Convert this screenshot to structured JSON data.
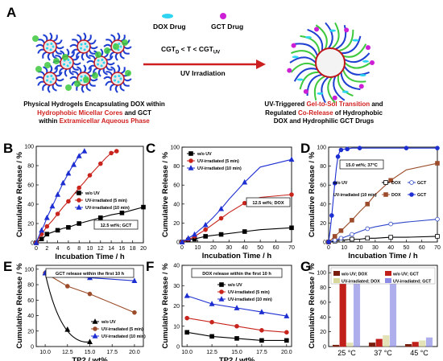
{
  "panel_a": {
    "letter": "A",
    "legend": {
      "dox": "DOX Drug",
      "gct": "GCT Drug"
    },
    "arrow_top": "CGT",
    "arrow_top_sub1": "D",
    "arrow_top_mid": " < T < CGT",
    "arrow_top_sub2": "UV",
    "arrow_bottom": "UV Irradiation",
    "left_caption": [
      [
        {
          "t": "Physical Hydrogels Encapsulating DOX within",
          "red": false
        }
      ],
      [
        {
          "t": "Hydrophobic Micellar Cores",
          "red": true
        },
        {
          "t": " and GCT",
          "red": false
        }
      ],
      [
        {
          "t": "within ",
          "red": false
        },
        {
          "t": "Extramicellar Aqueous Phase",
          "red": true
        }
      ]
    ],
    "right_caption": [
      [
        {
          "t": "UV-Triggered ",
          "red": false
        },
        {
          "t": "Gel-to-Sol Transition",
          "red": true
        },
        {
          "t": " and",
          "red": false
        }
      ],
      [
        {
          "t": "Regulated ",
          "red": false
        },
        {
          "t": "Co-Release",
          "red": true
        },
        {
          "t": " of Hydrophobic",
          "red": false
        }
      ],
      [
        {
          "t": "DOX and Hydrophilic GCT Drugs",
          "red": false
        }
      ]
    ],
    "colors": {
      "core": "#e8e8e8",
      "chain_blue": "#1f3fd1",
      "chain_red": "#c0161c",
      "dox": "#2fd4f0",
      "gct": "#cc1fd6",
      "green": "#3ec93e",
      "arrow": "#cc1f1f"
    }
  },
  "chart_data": [
    {
      "panel": "B",
      "type": "line",
      "xlabel": "Incubation Time / h",
      "ylabel": "Cumulative Release / %",
      "xlim": [
        0,
        20
      ],
      "ylim": [
        0,
        100
      ],
      "xticks": [
        0,
        2,
        4,
        6,
        8,
        10,
        12,
        14,
        16,
        18,
        20
      ],
      "yticks": [
        0,
        20,
        40,
        60,
        80,
        100
      ],
      "legend": [
        "w/o UV",
        "UV-irradiated (5 min)",
        "UV-irradiated (10 min)"
      ],
      "note": "12.5 wt%; GCT",
      "series": [
        {
          "name": "w/o UV",
          "color": "#000000",
          "marker": "square",
          "x": [
            0,
            0.5,
            1,
            1.5,
            2,
            3,
            4,
            5,
            6,
            7,
            8,
            10,
            12,
            14,
            16,
            18,
            20
          ],
          "y": [
            0,
            2,
            4,
            6,
            9,
            11,
            13,
            15,
            16,
            18,
            20,
            23,
            26,
            29,
            31,
            34,
            37
          ]
        },
        {
          "name": "UV-irradiated (5 min)",
          "color": "#c8241d",
          "marker": "circle",
          "x": [
            0,
            0.5,
            1,
            1.5,
            2,
            3,
            4,
            5,
            6,
            7,
            8,
            9,
            10,
            11,
            12,
            13,
            14,
            15
          ],
          "y": [
            0,
            5,
            9,
            13,
            17,
            23,
            30,
            37,
            43,
            50,
            57,
            63,
            70,
            76,
            82,
            88,
            93,
            95
          ]
        },
        {
          "name": "UV-irradiated (10 min)",
          "color": "#1d2fd1",
          "marker": "triangle",
          "x": [
            0,
            0.5,
            1,
            1.5,
            2,
            2.5,
            3,
            3.5,
            4,
            4.5,
            5,
            5.5,
            6,
            6.5,
            7,
            7.5,
            8,
            8.5,
            9
          ],
          "y": [
            0,
            7,
            13,
            19,
            26,
            32,
            38,
            44,
            50,
            56,
            62,
            67,
            72,
            77,
            81,
            86,
            90,
            93,
            95
          ]
        }
      ]
    },
    {
      "panel": "C",
      "type": "line",
      "xlabel": "Incubation Time / h",
      "ylabel": "Cumulative Release / %",
      "xlim": [
        0,
        70
      ],
      "ylim": [
        0,
        100
      ],
      "xticks": [
        0,
        10,
        20,
        30,
        40,
        50,
        60,
        70
      ],
      "yticks": [
        0,
        20,
        40,
        60,
        80,
        100
      ],
      "legend": [
        "w/o UV",
        "UV-irradiated (5 min)",
        "UV-irradiated (10 min)"
      ],
      "note": "12.5 wt%; DOX",
      "series": [
        {
          "name": "w/o UV",
          "color": "#000000",
          "marker": "square",
          "x": [
            0,
            2,
            4,
            6,
            8,
            10,
            15,
            20,
            25,
            30,
            40,
            50,
            70
          ],
          "y": [
            0,
            1,
            2,
            3,
            3,
            4,
            6,
            7,
            8,
            9,
            11,
            13,
            15
          ]
        },
        {
          "name": "UV-irradiated (5 min)",
          "color": "#c8241d",
          "marker": "circle",
          "x": [
            0,
            2,
            4,
            6,
            8,
            10,
            15,
            20,
            25,
            30,
            40,
            50,
            70
          ],
          "y": [
            0,
            1,
            3,
            4,
            6,
            8,
            13,
            19,
            25,
            31,
            41,
            47,
            50
          ]
        },
        {
          "name": "UV-irradiated (10 min)",
          "color": "#1d2fd1",
          "marker": "triangle",
          "x": [
            0,
            2,
            4,
            6,
            8,
            10,
            15,
            20,
            25,
            30,
            40,
            50,
            70
          ],
          "y": [
            0,
            2,
            4,
            6,
            8,
            11,
            18,
            26,
            35,
            45,
            63,
            79,
            87
          ]
        }
      ]
    },
    {
      "panel": "D",
      "type": "line",
      "xlabel": "Incubation Time / h",
      "ylabel": "Cumulative Release / %",
      "xlim": [
        0,
        70
      ],
      "ylim": [
        0,
        100
      ],
      "xticks": [
        0,
        10,
        20,
        30,
        40,
        50,
        60,
        70
      ],
      "yticks": [
        0,
        20,
        40,
        60,
        80,
        100
      ],
      "legend": [
        "DOX",
        "GCT",
        "DOX",
        "GCT"
      ],
      "legend_groups": [
        "w/o UV",
        "UV-irradiated (10 min)"
      ],
      "note": "15.0 wt%; 37°C",
      "series": [
        {
          "name": "DOX",
          "group": "w/o UV",
          "color": "#000000",
          "marker": "square",
          "open": true,
          "x": [
            0,
            2,
            4,
            6,
            8,
            10,
            15,
            20,
            25,
            30,
            40,
            50,
            70
          ],
          "y": [
            0,
            0.5,
            1,
            1.5,
            2,
            2,
            3,
            3,
            4,
            4,
            5,
            5,
            6
          ]
        },
        {
          "name": "GCT",
          "group": "w/o UV",
          "color": "#2f47c8",
          "marker": "circle",
          "open": true,
          "x": [
            0,
            2,
            4,
            6,
            8,
            10,
            15,
            20,
            25,
            30,
            40,
            50,
            70
          ],
          "y": [
            0,
            1,
            2,
            3,
            4,
            5,
            8,
            11,
            14,
            16,
            19,
            21,
            24
          ]
        },
        {
          "name": "DOX",
          "group": "UV-irradiated (10 min)",
          "color": "#9c4c2a",
          "marker": "square",
          "x": [
            0,
            2,
            4,
            6,
            8,
            10,
            15,
            20,
            25,
            30,
            40,
            50,
            70
          ],
          "y": [
            0,
            3,
            6,
            9,
            12,
            15,
            23,
            32,
            40,
            50,
            65,
            76,
            83
          ]
        },
        {
          "name": "GCT",
          "group": "UV-irradiated (10 min)",
          "color": "#1d2fd1",
          "marker": "circle",
          "x": [
            0,
            1,
            2,
            3,
            4,
            5,
            6,
            7,
            8,
            10,
            12,
            15,
            20,
            30,
            50,
            70
          ],
          "y": [
            0,
            12,
            28,
            45,
            62,
            78,
            90,
            95,
            97,
            98,
            98,
            99,
            99,
            99,
            99,
            99
          ]
        }
      ]
    },
    {
      "panel": "E",
      "type": "line",
      "xlabel": "TP2 / wt%",
      "ylabel": "Cumulative Release / %",
      "xlim": [
        9,
        21
      ],
      "ylim": [
        0,
        105
      ],
      "xticks": [
        10.0,
        12.5,
        15.0,
        17.5,
        20.0
      ],
      "xticklabels": [
        "10.0",
        "12.5",
        "15.0",
        "17.5",
        "20.0"
      ],
      "yticks": [
        0,
        20,
        40,
        60,
        80,
        100
      ],
      "title_box": "GCT release within the first 10 h",
      "legend": [
        "w/o UV",
        "UV-irradiated (5 min)",
        "UV-irradiated (10 min)"
      ],
      "series": [
        {
          "name": "w/o UV",
          "color": "#000000",
          "marker": "triangle",
          "x": [
            10,
            12.5,
            15
          ],
          "y": [
            95,
            22,
            6
          ],
          "smooth": true
        },
        {
          "name": "UV-irradiated (5 min)",
          "color": "#9c4c2a",
          "marker": "circle",
          "x": [
            10,
            12.5,
            15,
            20
          ],
          "y": [
            95,
            78,
            68,
            44
          ]
        },
        {
          "name": "UV-irradiated (10 min)",
          "color": "#1d2fd1",
          "marker": "triangle",
          "x": [
            10,
            12.5,
            15,
            20
          ],
          "y": [
            95,
            92,
            89,
            85
          ]
        }
      ]
    },
    {
      "panel": "F",
      "type": "line",
      "xlabel": "TP2 / wt%",
      "ylabel": "Cumulative Release / %",
      "xlim": [
        9.5,
        20.5
      ],
      "ylim": [
        0,
        40
      ],
      "xticks": [
        10.0,
        12.5,
        15.0,
        17.5,
        20.0
      ],
      "xticklabels": [
        "10.0",
        "12.5",
        "15.0",
        "17.5",
        "20.0"
      ],
      "yticks": [
        0,
        10,
        20,
        30,
        40
      ],
      "title_box": "DOX release within the first 10 h",
      "legend": [
        "w/o UV",
        "UV-irradiated (5 min)",
        "UV-irradiated (10 min)"
      ],
      "series": [
        {
          "name": "w/o UV",
          "color": "#000000",
          "marker": "square",
          "x": [
            10,
            12.5,
            15,
            17.5,
            20
          ],
          "y": [
            7,
            5,
            4,
            3,
            3
          ]
        },
        {
          "name": "UV-irradiated (5 min)",
          "color": "#c8241d",
          "marker": "circle",
          "x": [
            10,
            12.5,
            15,
            17.5,
            20
          ],
          "y": [
            14,
            12,
            10,
            8,
            7
          ]
        },
        {
          "name": "UV-irradiated (10 min)",
          "color": "#1d2fd1",
          "marker": "triangle",
          "x": [
            10,
            12.5,
            15,
            17.5,
            20
          ],
          "y": [
            25,
            21,
            19,
            17,
            15
          ]
        }
      ]
    },
    {
      "panel": "G",
      "type": "bar",
      "xlabel": "",
      "ylabel": "Cumulative Release / %",
      "ylim": [
        0,
        110
      ],
      "yticks": [
        0,
        20,
        40,
        60,
        80,
        100
      ],
      "categories": [
        "25 °C",
        "37 °C",
        "45 °C"
      ],
      "series": [
        {
          "name": "w/o UV; DOX",
          "color": "#7a1f0f",
          "values": [
            2,
            5,
            3
          ]
        },
        {
          "name": "w/o UV; GCT",
          "color": "#c01f1a",
          "values": [
            95,
            10,
            6
          ]
        },
        {
          "name": "UV-irradiated; DOX",
          "color": "#d8d89a",
          "values": [
            5,
            15,
            8
          ],
          "pattern": "diag"
        },
        {
          "name": "UV-irradiated; GCT",
          "color": "#8c8ce6",
          "values": [
            96,
            95,
            12
          ],
          "pattern": "cross"
        }
      ]
    }
  ]
}
